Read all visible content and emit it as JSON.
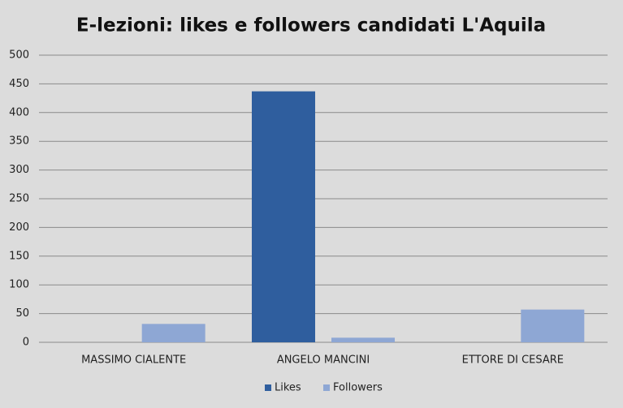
{
  "chart_data": {
    "type": "bar",
    "title": "E-lezioni: likes e followers candidati L'Aquila",
    "categories": [
      "MASSIMO CIALENTE",
      "ANGELO MANCINI",
      "ETTORE DI CESARE"
    ],
    "series": [
      {
        "name": "Likes",
        "color": "#2f5e9e",
        "values": [
          0,
          437,
          0
        ]
      },
      {
        "name": "Followers",
        "color": "#8ea7d4",
        "values": [
          32,
          8,
          57
        ]
      }
    ],
    "ylim": [
      0,
      500
    ],
    "yticks": [
      0,
      50,
      100,
      150,
      200,
      250,
      300,
      350,
      400,
      450,
      500
    ],
    "grid": true,
    "legend": "bottom"
  }
}
